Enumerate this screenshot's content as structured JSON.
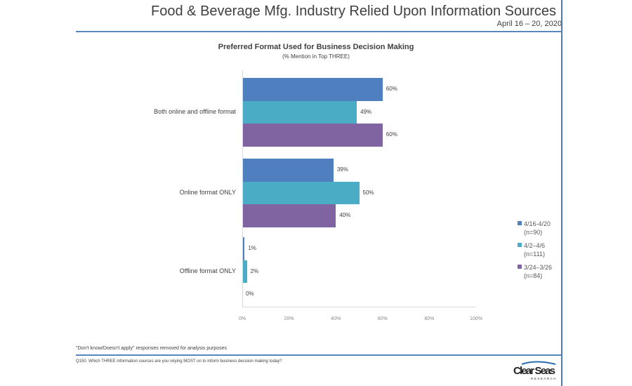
{
  "header": {
    "title": "Food & Beverage Mfg. Industry Relied Upon Information Sources",
    "date": "April 16 – 20, 2020"
  },
  "chart_data": {
    "type": "bar",
    "orientation": "horizontal",
    "title": "Preferred Format Used for Business Decision Making",
    "subtitle": "(% Mention in Top THREE)",
    "categories": [
      "Both online and offline format",
      "Online format ONLY",
      "Offline format ONLY"
    ],
    "series": [
      {
        "name": "4/16-4/20",
        "n": "(n=90)",
        "color": "#4f7fbf",
        "values": [
          60,
          39,
          1
        ]
      },
      {
        "name": "4/2–4/6",
        "n": "(n=111)",
        "color": "#4bacc6",
        "values": [
          49,
          50,
          2
        ]
      },
      {
        "name": "3/24–3/26",
        "n": "(n=84)",
        "color": "#8064a2",
        "values": [
          60,
          40,
          0
        ]
      }
    ],
    "xlim": [
      0,
      100
    ],
    "xticks": [
      "0%",
      "20%",
      "40%",
      "60%",
      "80%",
      "100%"
    ],
    "legend": "right",
    "grid": false
  },
  "footer": {
    "note": "\"Don't know/Doesn't apply\" responses removed for analysis purposes",
    "question": "Q150.  Which THREE information sources are you relying MOST on to inform business decision making today?",
    "logo": "Clear Seas RESEARCH"
  }
}
